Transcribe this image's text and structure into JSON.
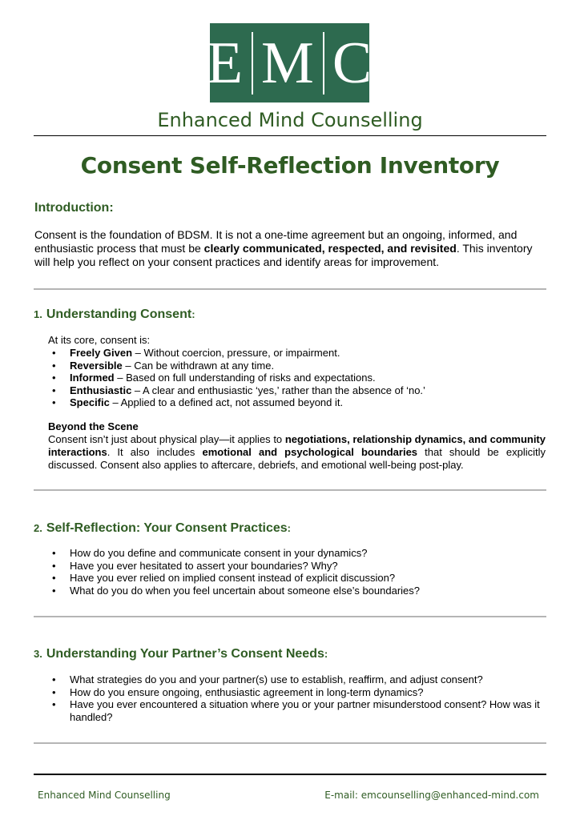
{
  "logo": {
    "letters": [
      "E",
      "M",
      "C"
    ]
  },
  "brand_name": "Enhanced Mind Counselling",
  "title": "Consent Self-Reflection Inventory",
  "introduction": {
    "heading": "Introduction:",
    "text_1": "Consent is the foundation of BDSM. It is not a one-time agreement but an ongoing, informed, and enthusiastic process that must be ",
    "text_bold": "clearly communicated, respected, and revisited",
    "text_2": ". This inventory will help you reflect on your consent practices and identify areas for improvement."
  },
  "section1": {
    "number": "1.",
    "heading": "Understanding Consent",
    "colon": ":",
    "lead": "At its core, consent is:",
    "items": [
      {
        "term": "Freely Given",
        "desc": " – Without coercion, pressure, or impairment."
      },
      {
        "term": "Reversible",
        "desc": " – Can be withdrawn at any time."
      },
      {
        "term": "Informed",
        "desc": " – Based on full understanding of risks and expectations."
      },
      {
        "term": "Enthusiastic",
        "desc": " – A clear and enthusiastic ‘yes,’ rather than the absence of ‘no.’"
      },
      {
        "term": "Specific",
        "desc": " – Applied to a defined act, not assumed beyond it."
      }
    ],
    "sub_heading": "Beyond the Scene",
    "sub_text_1": "Consent isn’t just about physical play—it applies to ",
    "sub_bold_1": "negotiations, relationship dynamics, and community interactions",
    "sub_text_2": ". It also includes ",
    "sub_bold_2": "emotional and psychological boundaries",
    "sub_text_3": " that should be explicitly discussed. Consent also applies to aftercare, debriefs, and emotional well-being post-play."
  },
  "section2": {
    "number": "2.",
    "heading": "Self-Reflection: Your Consent Practices",
    "colon": ":",
    "items": [
      "How do you define and communicate consent in your dynamics?",
      "Have you ever hesitated to assert your boundaries? Why?",
      "Have you ever relied on implied consent instead of explicit discussion?",
      "What do you do when you feel uncertain about someone else’s boundaries?"
    ]
  },
  "section3": {
    "number": "3.",
    "heading": "Understanding Your Partner’s Consent Needs",
    "colon": ":",
    "items": [
      "What strategies do you and your partner(s) use to establish, reaffirm, and adjust consent?",
      "How do you ensure ongoing, enthusiastic agreement in long-term dynamics?",
      "Have you ever encountered a situation where you or your partner misunderstood consent? How was it handled?"
    ]
  },
  "bullet_char": "•",
  "footer": {
    "left": "Enhanced Mind Counselling",
    "right": "E-mail: emcounselling@enhanced-mind.com"
  }
}
